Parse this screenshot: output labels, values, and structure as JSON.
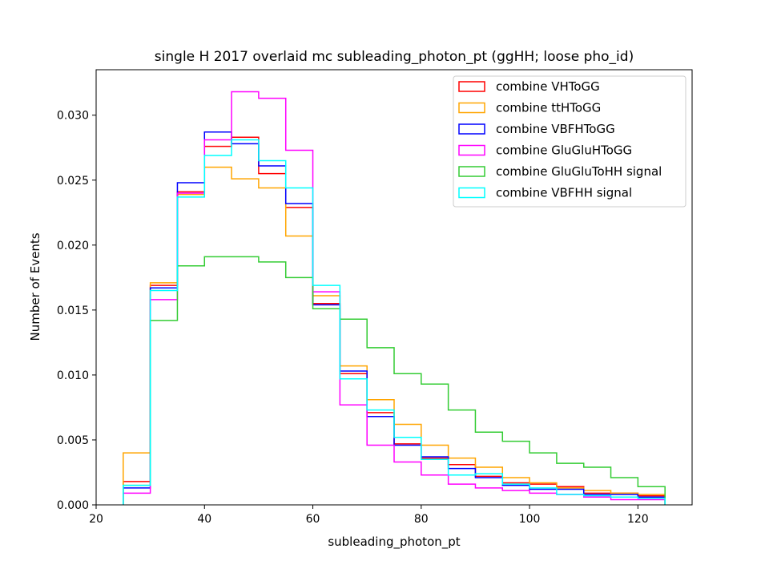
{
  "chart_data": {
    "type": "histogram-step",
    "title": "single H 2017 overlaid mc subleading_photon_pt (ggHH; loose pho_id)",
    "xlabel": "subleading_photon_pt",
    "ylabel": "Number of Events",
    "xlim": [
      20,
      130
    ],
    "ylim": [
      0,
      0.0335
    ],
    "xticks": [
      20,
      40,
      60,
      80,
      100,
      120
    ],
    "yticks": [
      0.0,
      0.005,
      0.01,
      0.015,
      0.02,
      0.025,
      0.03
    ],
    "ytick_labels": [
      "0.000",
      "0.005",
      "0.010",
      "0.015",
      "0.020",
      "0.025",
      "0.030"
    ],
    "bin_edges": [
      25,
      30,
      35,
      40,
      45,
      50,
      55,
      60,
      65,
      70,
      75,
      80,
      85,
      90,
      95,
      100,
      105,
      110,
      115,
      120,
      125
    ],
    "legend_position": "upper-right",
    "grid": false,
    "series": [
      {
        "name": "combine VHToGG",
        "color": "#ff0000",
        "values": [
          0.0018,
          0.0169,
          0.0241,
          0.0276,
          0.0283,
          0.0255,
          0.0229,
          0.0155,
          0.0101,
          0.0071,
          0.0047,
          0.0036,
          0.0031,
          0.0022,
          0.0017,
          0.0016,
          0.0014,
          0.0009,
          0.0009,
          0.0007
        ]
      },
      {
        "name": "combine ttHToGG",
        "color": "#ffa500",
        "values": [
          0.004,
          0.0171,
          0.0239,
          0.026,
          0.0251,
          0.0244,
          0.0207,
          0.0161,
          0.0107,
          0.0081,
          0.0062,
          0.0046,
          0.0036,
          0.0029,
          0.0021,
          0.0017,
          0.0013,
          0.0011,
          0.0009,
          0.0008
        ]
      },
      {
        "name": "combine VBFHToGG",
        "color": "#0000ff",
        "values": [
          0.0013,
          0.0167,
          0.0248,
          0.0287,
          0.0278,
          0.0261,
          0.0232,
          0.0154,
          0.0103,
          0.0068,
          0.0046,
          0.0037,
          0.0028,
          0.0021,
          0.0015,
          0.0012,
          0.0012,
          0.0008,
          0.0008,
          0.0006
        ]
      },
      {
        "name": "combine GluGluHToGG",
        "color": "#ff00ff",
        "values": [
          0.0009,
          0.0158,
          0.024,
          0.0281,
          0.0318,
          0.0313,
          0.0273,
          0.0164,
          0.0077,
          0.0046,
          0.0033,
          0.0023,
          0.0016,
          0.0013,
          0.0011,
          0.0009,
          0.0008,
          0.0006,
          0.0004,
          0.0004
        ]
      },
      {
        "name": "combine GluGluToHH signal",
        "color": "#33cc33",
        "values": [
          0.0015,
          0.0142,
          0.0184,
          0.0191,
          0.0191,
          0.0187,
          0.0175,
          0.0151,
          0.0143,
          0.0121,
          0.0101,
          0.0093,
          0.0073,
          0.0056,
          0.0049,
          0.004,
          0.0032,
          0.0029,
          0.0021,
          0.0014
        ]
      },
      {
        "name": "combine VBFHH signal",
        "color": "#00ffff",
        "values": [
          0.0015,
          0.0165,
          0.0237,
          0.0269,
          0.0281,
          0.0265,
          0.0244,
          0.0169,
          0.0097,
          0.0073,
          0.0052,
          0.0035,
          0.0023,
          0.0024,
          0.0016,
          0.0013,
          0.0008,
          0.0007,
          0.0006,
          0.0005
        ]
      }
    ]
  }
}
